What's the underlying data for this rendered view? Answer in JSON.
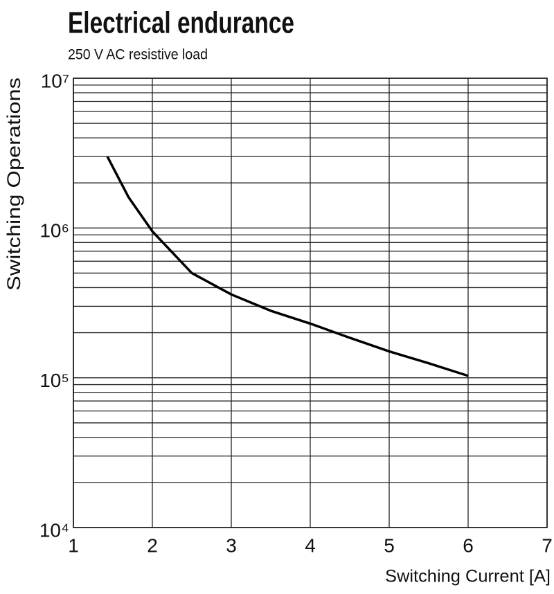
{
  "chart_data": {
    "type": "line",
    "title": "Electrical endurance",
    "subtitle": "250 V AC resistive load",
    "x_label": "Switching Current [A]",
    "y_label": "Switching Operations",
    "xlim": [
      1,
      7
    ],
    "xticks": [
      1,
      2,
      3,
      4,
      5,
      6,
      7
    ],
    "ylim": [
      10000,
      10000000
    ],
    "yscale": "log",
    "yticks": [
      {
        "value": 10000,
        "label": "10⁴"
      },
      {
        "value": 100000,
        "label": "10⁵"
      },
      {
        "value": 1000000,
        "label": "10⁶"
      },
      {
        "value": 10000000,
        "label": "10⁷"
      }
    ],
    "yminorticks": [
      20000,
      30000,
      40000,
      50000,
      60000,
      70000,
      80000,
      90000,
      200000,
      300000,
      400000,
      500000,
      600000,
      700000,
      800000,
      900000,
      2000000,
      3000000,
      4000000,
      5000000,
      6000000,
      7000000,
      8000000,
      9000000
    ],
    "grid": true,
    "color": "#000000",
    "x": [
      1.43,
      1.7,
      2,
      2.5,
      3,
      3.5,
      4,
      4.5,
      5,
      5.5,
      6
    ],
    "values": [
      3000000,
      1600000,
      950000,
      500000,
      360000,
      280000,
      230000,
      185000,
      150000,
      125000,
      103000
    ]
  }
}
